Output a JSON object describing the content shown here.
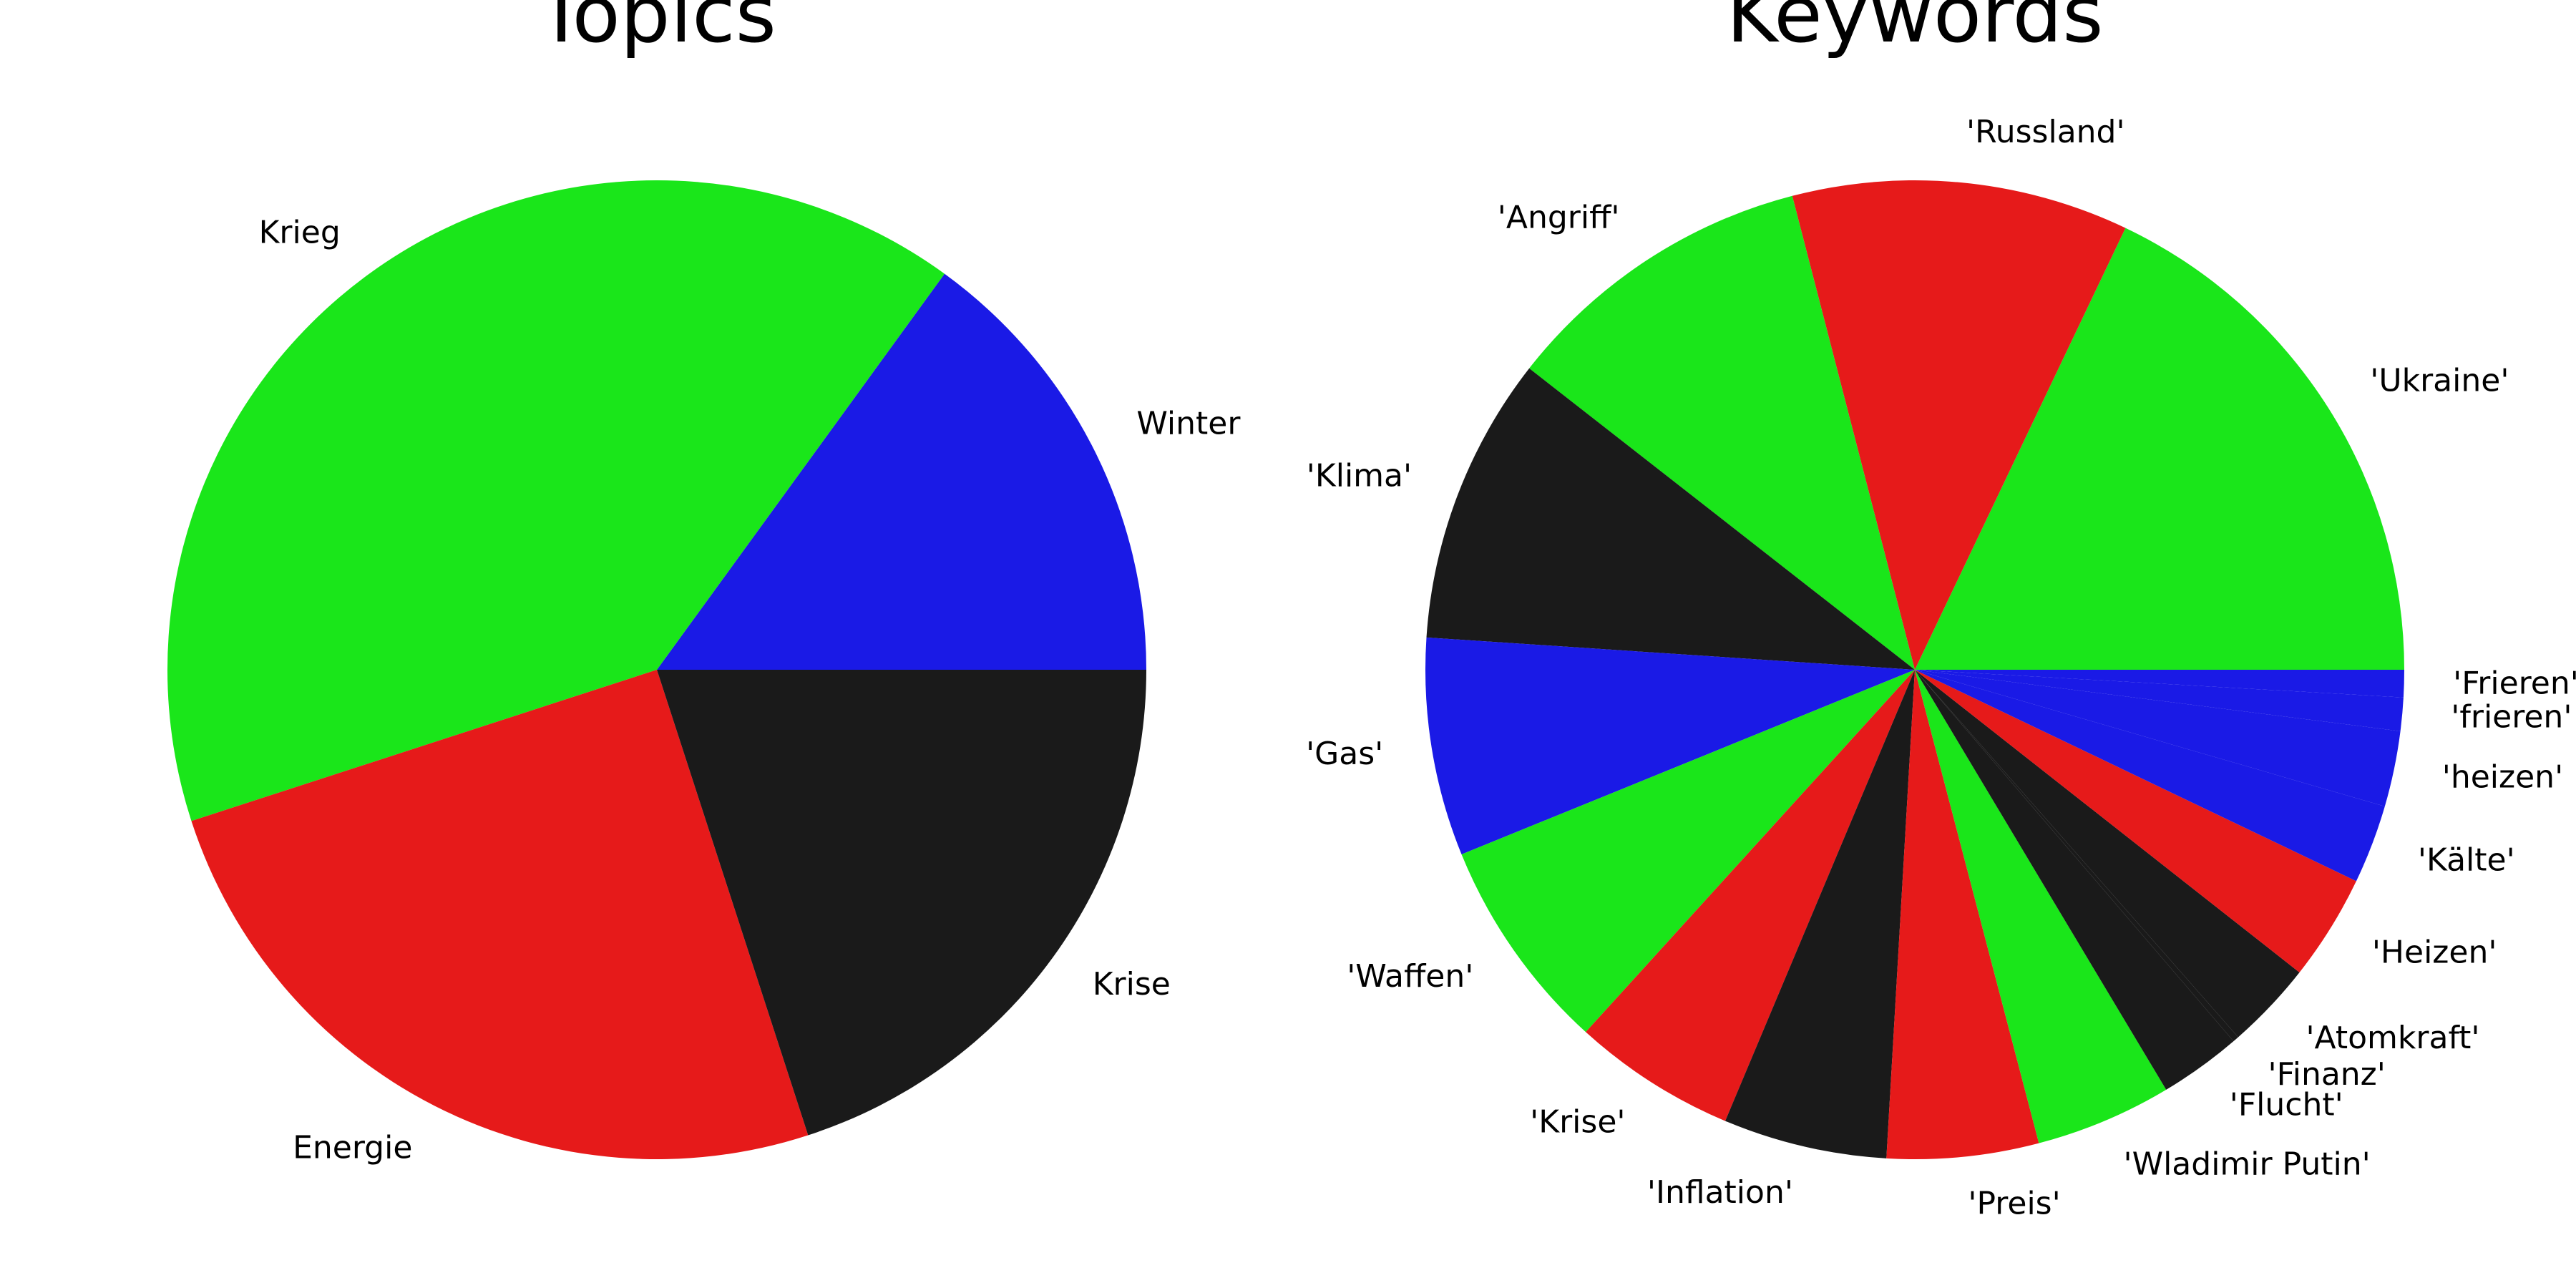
{
  "chart_data": [
    {
      "type": "pie",
      "title": "Topics",
      "categories": [
        "Winter",
        "Krieg",
        "Energie",
        "Krise"
      ],
      "values": [
        15,
        40,
        25,
        20
      ],
      "colors": [
        "#1a1ae6",
        "#1ae61a",
        "#e61a1a",
        "#1a1a1a"
      ]
    },
    {
      "type": "pie",
      "title": "Keywords",
      "categories": [
        "'Ukraine'",
        "'Russland'",
        "'Angriff'",
        "'Klima'",
        "'Gas'",
        "'Waffen'",
        "'Krise'",
        "'Inflation'",
        "'Preis'",
        "'Wladimir Putin'",
        "'Flucht'",
        "'Finanz'",
        "'Atomkraft'",
        "'Heizen'",
        "'Kälte'",
        "'heizen'",
        "'frieren'",
        "'Frieren'"
      ],
      "values": [
        17.9,
        11.1,
        10.4,
        9.5,
        7.2,
        7.1,
        5.4,
        5.4,
        5.0,
        4.5,
        2.7,
        0.2,
        2.9,
        3.5,
        2.6,
        2.5,
        1.1,
        0.9
      ],
      "colors": [
        "#1ae61a",
        "#e61a1a",
        "#1ae61a",
        "#1a1a1a",
        "#1a1ae6",
        "#1ae61a",
        "#e61a1a",
        "#1a1a1a",
        "#e61a1a",
        "#1ae61a",
        "#1a1a1a",
        "#1a1a1a",
        "#1a1a1a",
        "#e61a1a",
        "#1a1ae6",
        "#1a1ae6",
        "#1a1ae6",
        "#1a1ae6"
      ]
    }
  ]
}
